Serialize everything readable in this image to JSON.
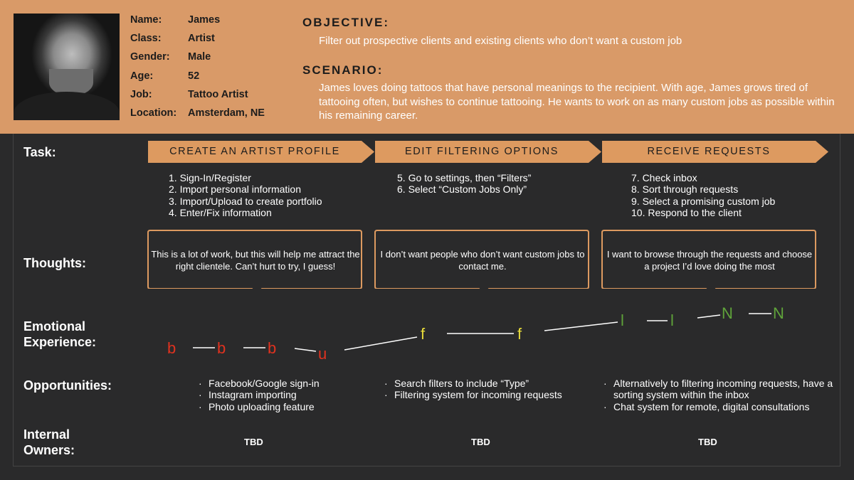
{
  "persona": {
    "fields": [
      {
        "label": "Name:",
        "value": "James"
      },
      {
        "label": "Class:",
        "value": "Artist"
      },
      {
        "label": "Gender:",
        "value": "Male"
      },
      {
        "label": "Age:",
        "value": "52"
      },
      {
        "label": "Job:",
        "value": "Tattoo Artist"
      },
      {
        "label": "Location:",
        "value": "Amsterdam, NE"
      }
    ]
  },
  "objective": {
    "heading": "OBJECTIVE:",
    "text": "Filter out prospective clients and existing clients who don’t want a custom job"
  },
  "scenario": {
    "heading": "SCENARIO:",
    "text": "James loves doing tattoos that have personal meanings to the recipient. With age, James grows tired of tattooing often, but wishes to continue tattooing. He wants to work on as many custom jobs as possible within his remaining career."
  },
  "row_labels": {
    "task": "Task:",
    "thoughts": "Thoughts:",
    "emotional_1": "Emotional",
    "emotional_2": "Experience:",
    "opportunities": "Opportunities:",
    "owners_1": "Internal",
    "owners_2": "Owners:"
  },
  "phases": [
    {
      "title": "CREATE AN ARTIST PROFILE",
      "steps": [
        "1.  Sign-In/Register",
        "2.  Import personal information",
        "3.  Import/Upload to create portfolio",
        "4.  Enter/Fix information"
      ],
      "thought": "This is a lot of work, but this will help me attract the right clientele. Can’t hurt to try, I guess!",
      "opportunities": [
        "Facebook/Google sign-in",
        "Instagram importing",
        "Photo uploading feature"
      ],
      "owner": "TBD"
    },
    {
      "title": "EDIT FILTERING OPTIONS",
      "steps": [
        "5.  Go to settings, then “Filters”",
        "6.  Select “Custom Jobs Only”"
      ],
      "thought": "I don’t want people who don’t want custom jobs to contact me.",
      "opportunities": [
        "Search filters to include “Type”",
        "Filtering system for incoming requests"
      ],
      "owner": "TBD"
    },
    {
      "title": "RECEIVE REQUESTS",
      "steps": [
        "7.  Check inbox",
        "8.  Sort through requests",
        "9.  Select a promising custom job",
        "10. Respond to the client"
      ],
      "thought": "I want to browse through the requests and choose a project I’d love doing the most",
      "opportunities": [
        "Alternatively to filtering incoming requests, have a sorting system within the inbox",
        "Chat system for remote, digital consultations"
      ],
      "owner": "TBD"
    }
  ],
  "emotions": [
    {
      "char": "b",
      "color": "#e0321f"
    },
    {
      "char": "b",
      "color": "#e0321f"
    },
    {
      "char": "b",
      "color": "#e0321f"
    },
    {
      "char": "u",
      "color": "#e0321f"
    },
    {
      "char": "f",
      "color": "#e8dc3a"
    },
    {
      "char": "f",
      "color": "#e8dc3a"
    },
    {
      "char": "l",
      "color": "#5fa33a"
    },
    {
      "char": "l",
      "color": "#5fa33a"
    },
    {
      "char": "N",
      "color": "#5fa33a"
    },
    {
      "char": "N",
      "color": "#5fa33a"
    }
  ],
  "colors": {
    "header_bg": "#d99a68",
    "body_bg": "#2a2a2b",
    "accent": "#dd9a60"
  }
}
